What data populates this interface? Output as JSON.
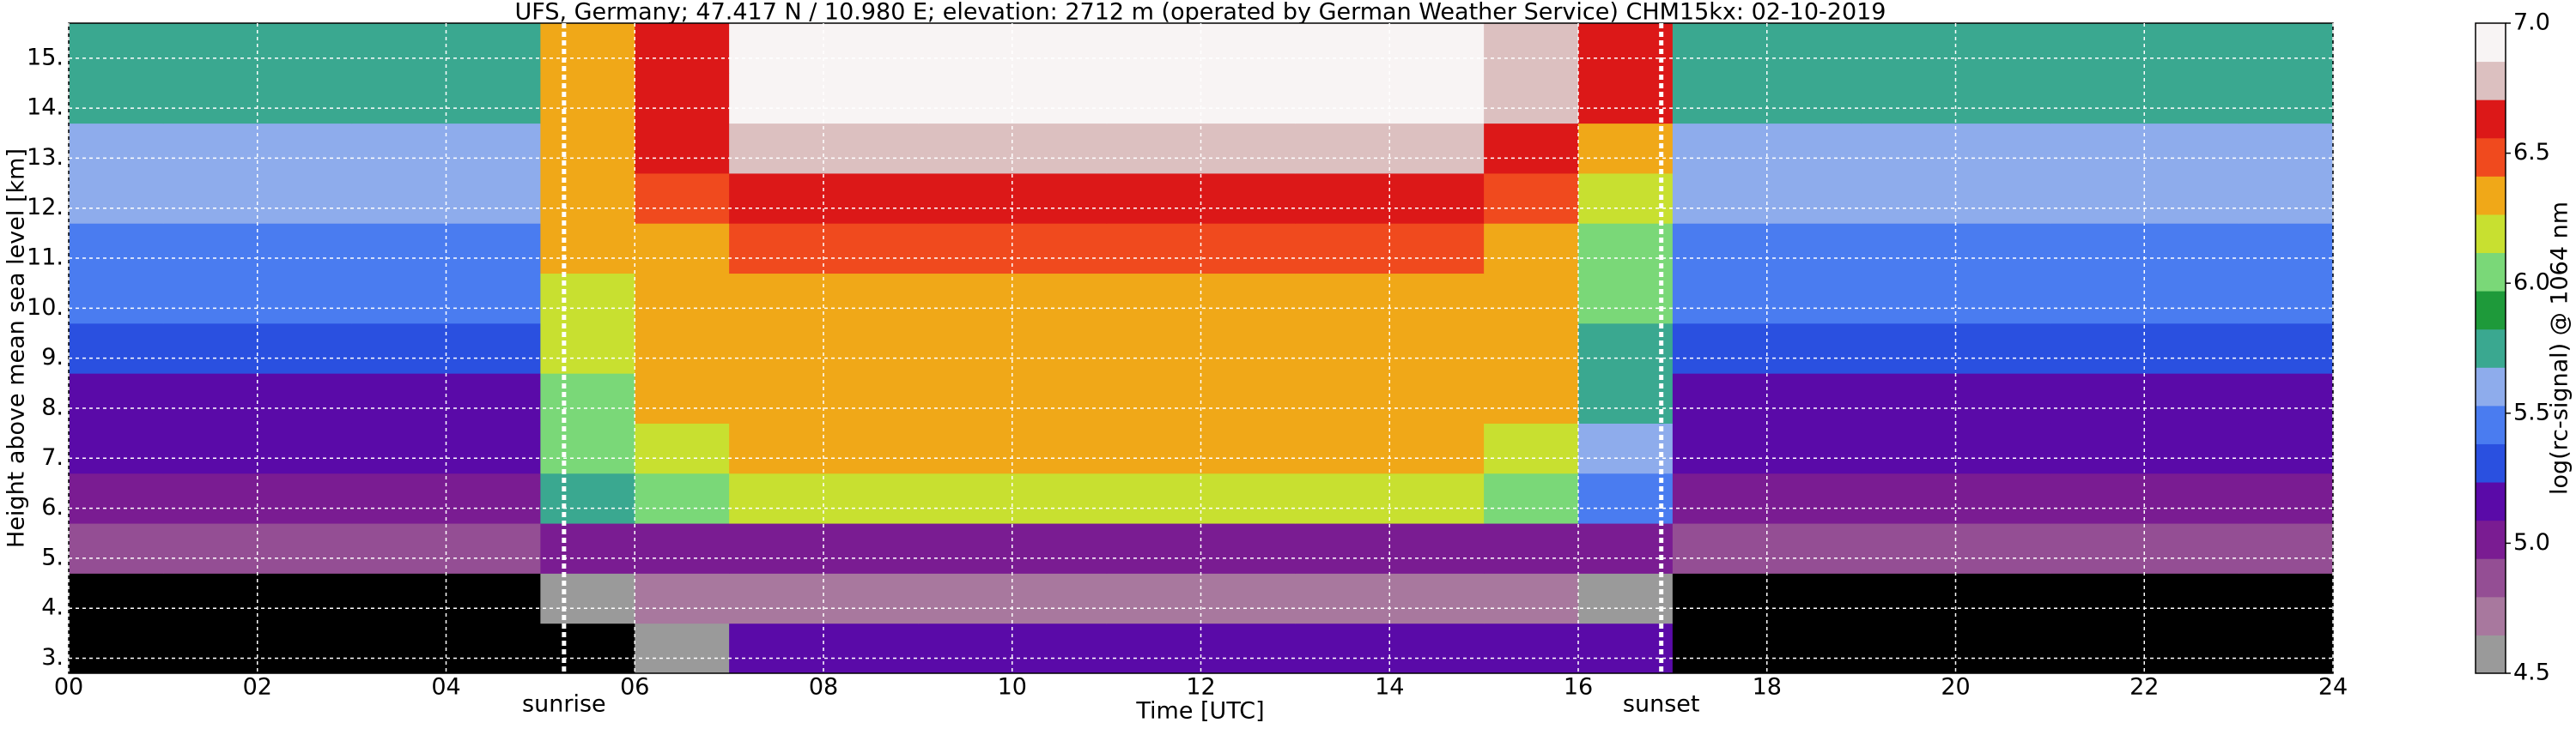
{
  "chart_data": {
    "type": "heatmap",
    "title": "UFS, Germany; 47.417 N / 10.980 E; elevation: 2712 m  (operated by German Weather Service)    CHM15kx: 02-10-2019",
    "x_label": "Time [UTC]",
    "y_label": "Height above mean sea level [km]",
    "colorbar_label": "log(rc-signal) @ 1064 nm",
    "xlim": [
      0,
      24
    ],
    "xticks": [
      {
        "value": 0,
        "label": "00"
      },
      {
        "value": 2,
        "label": "02"
      },
      {
        "value": 4,
        "label": "04"
      },
      {
        "value": 6,
        "label": "06"
      },
      {
        "value": 8,
        "label": "08"
      },
      {
        "value": 10,
        "label": "10"
      },
      {
        "value": 12,
        "label": "12"
      },
      {
        "value": 14,
        "label": "14"
      },
      {
        "value": 16,
        "label": "16"
      },
      {
        "value": 18,
        "label": "18"
      },
      {
        "value": 20,
        "label": "20"
      },
      {
        "value": 22,
        "label": "22"
      },
      {
        "value": 24,
        "label": "24"
      }
    ],
    "ylim": [
      2.7,
      15.7
    ],
    "yticks": [
      {
        "value": 3,
        "label": "3."
      },
      {
        "value": 4,
        "label": "4."
      },
      {
        "value": 5,
        "label": "5."
      },
      {
        "value": 6,
        "label": "6."
      },
      {
        "value": 7,
        "label": "7."
      },
      {
        "value": 8,
        "label": "8."
      },
      {
        "value": 9,
        "label": "9."
      },
      {
        "value": 10,
        "label": "10."
      },
      {
        "value": 11,
        "label": "11."
      },
      {
        "value": 12,
        "label": "12."
      },
      {
        "value": 13,
        "label": "13."
      },
      {
        "value": 14,
        "label": "14."
      },
      {
        "value": 15,
        "label": "15."
      }
    ],
    "grid": true,
    "clim": [
      4.5,
      7.0
    ],
    "cticks": [
      {
        "value": 4.5,
        "label": "4.5"
      },
      {
        "value": 5.0,
        "label": "5.0"
      },
      {
        "value": 5.5,
        "label": "5.5"
      },
      {
        "value": 6.0,
        "label": "6.0"
      },
      {
        "value": 6.5,
        "label": "6.5"
      },
      {
        "value": 7.0,
        "label": "7.0"
      }
    ],
    "colors": [
      "#9a9a9a",
      "#a8789e",
      "#944e94",
      "#7a1c92",
      "#5a0aa8",
      "#2a50e0",
      "#4a7cf0",
      "#8eacec",
      "#3aa890",
      "#1e9a3a",
      "#7ad878",
      "#c8e030",
      "#f0a818",
      "#f04a1e",
      "#dc1818",
      "#dcc0c0",
      "#f8f4f4"
    ],
    "under_color": "#000000",
    "sun_lines": [
      {
        "label": "sunrise",
        "x": 5.25
      },
      {
        "label": "sunset",
        "x": 16.88
      }
    ],
    "x": [
      0.5,
      1.5,
      2.5,
      3.5,
      4.5,
      5.5,
      6.5,
      7.5,
      8.5,
      9.5,
      10.5,
      11.5,
      12.5,
      13.5,
      14.5,
      15.5,
      16.5,
      17.5,
      18.5,
      19.5,
      20.5,
      21.5,
      22.5,
      23.5
    ],
    "y": [
      3.2,
      4.2,
      5.2,
      6.2,
      7.2,
      8.2,
      9.2,
      10.2,
      11.2,
      12.2,
      13.2,
      14.2,
      15.2
    ],
    "z": [
      [
        4.4,
        4.4,
        4.4,
        4.4,
        4.4,
        4.4,
        4.6,
        5.2,
        5.2,
        5.2,
        5.2,
        5.2,
        5.2,
        5.2,
        5.2,
        5.2,
        5.1,
        4.4,
        4.4,
        4.4,
        4.4,
        4.4,
        4.4,
        4.4
      ],
      [
        4.4,
        4.4,
        4.4,
        4.4,
        4.4,
        4.6,
        4.7,
        4.7,
        4.7,
        4.7,
        4.7,
        4.7,
        4.7,
        4.7,
        4.7,
        4.7,
        4.6,
        4.4,
        4.4,
        4.4,
        4.4,
        4.4,
        4.4,
        4.4
      ],
      [
        4.9,
        4.9,
        4.9,
        4.9,
        4.9,
        5.0,
        5.0,
        5.0,
        5.0,
        5.0,
        5.0,
        5.0,
        5.0,
        5.0,
        5.0,
        5.0,
        5.0,
        4.9,
        4.9,
        4.9,
        4.9,
        4.9,
        4.9,
        4.9
      ],
      [
        5.0,
        5.0,
        5.0,
        5.0,
        5.0,
        5.8,
        6.0,
        6.2,
        6.2,
        6.2,
        6.2,
        6.2,
        6.2,
        6.2,
        6.2,
        6.1,
        5.5,
        5.0,
        5.0,
        5.0,
        5.0,
        5.0,
        5.0,
        5.0
      ],
      [
        5.1,
        5.1,
        5.1,
        5.1,
        5.1,
        6.0,
        6.2,
        6.3,
        6.3,
        6.3,
        6.3,
        6.3,
        6.3,
        6.3,
        6.3,
        6.2,
        5.6,
        5.1,
        5.1,
        5.1,
        5.1,
        5.1,
        5.1,
        5.1
      ],
      [
        5.2,
        5.2,
        5.2,
        5.2,
        5.2,
        6.1,
        6.3,
        6.4,
        6.4,
        6.4,
        6.4,
        6.4,
        6.4,
        6.4,
        6.4,
        6.3,
        5.7,
        5.2,
        5.2,
        5.2,
        5.2,
        5.2,
        5.2,
        5.2
      ],
      [
        5.3,
        5.3,
        5.3,
        5.3,
        5.3,
        6.2,
        6.3,
        6.4,
        6.4,
        6.4,
        6.4,
        6.4,
        6.4,
        6.4,
        6.4,
        6.3,
        5.8,
        5.3,
        5.3,
        5.3,
        5.3,
        5.3,
        5.3,
        5.3
      ],
      [
        5.4,
        5.4,
        5.4,
        5.4,
        5.4,
        6.2,
        6.3,
        6.4,
        6.4,
        6.4,
        6.4,
        6.4,
        6.4,
        6.4,
        6.4,
        6.3,
        6.0,
        5.4,
        5.4,
        5.4,
        5.4,
        5.4,
        5.4,
        5.4
      ],
      [
        5.5,
        5.5,
        5.5,
        5.5,
        5.5,
        6.3,
        6.4,
        6.5,
        6.5,
        6.5,
        6.5,
        6.5,
        6.5,
        6.5,
        6.5,
        6.4,
        6.1,
        5.5,
        5.5,
        5.5,
        5.5,
        5.5,
        5.5,
        5.5
      ],
      [
        5.6,
        5.6,
        5.6,
        5.6,
        5.6,
        6.3,
        6.5,
        6.6,
        6.6,
        6.6,
        6.6,
        6.6,
        6.6,
        6.6,
        6.6,
        6.5,
        6.2,
        5.6,
        5.6,
        5.6,
        5.6,
        5.6,
        5.6,
        5.6
      ],
      [
        5.6,
        5.6,
        5.6,
        5.6,
        5.6,
        6.3,
        6.6,
        6.8,
        6.8,
        6.8,
        6.8,
        6.8,
        6.8,
        6.8,
        6.8,
        6.7,
        6.4,
        5.6,
        5.6,
        5.6,
        5.6,
        5.6,
        5.6,
        5.6
      ],
      [
        5.7,
        5.7,
        5.7,
        5.7,
        5.7,
        6.4,
        6.7,
        6.9,
        6.9,
        6.9,
        6.9,
        6.9,
        6.9,
        6.9,
        6.9,
        6.8,
        6.6,
        5.7,
        5.7,
        5.7,
        5.7,
        5.7,
        5.7,
        5.7
      ],
      [
        5.7,
        5.7,
        5.7,
        5.7,
        5.7,
        6.4,
        6.7,
        6.9,
        6.9,
        6.9,
        6.9,
        6.9,
        6.9,
        6.9,
        6.9,
        6.8,
        6.6,
        5.7,
        5.7,
        5.7,
        5.7,
        5.7,
        5.7,
        5.7
      ]
    ]
  }
}
